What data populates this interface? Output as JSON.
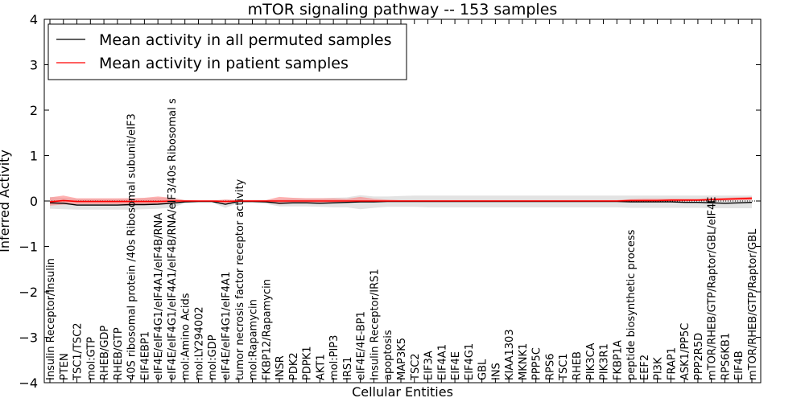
{
  "chart_data": {
    "type": "line",
    "title": "mTOR signaling pathway -- 153 samples",
    "xlabel": "Cellular Entities",
    "ylabel": "Inferred Activity",
    "ylim": [
      -4,
      4
    ],
    "yticks": [
      -4,
      -3,
      -2,
      -1,
      0,
      1,
      2,
      3,
      4
    ],
    "ytick_labels": [
      "−4",
      "−3",
      "−2",
      "−1",
      "0",
      "1",
      "2",
      "3",
      "4"
    ],
    "grid": false,
    "legend_position": "top-left",
    "categories": [
      "Insulin Receptor/Insulin",
      "PTEN",
      "TSC1/TSC2",
      "mol:GTP",
      "RHEB/GDP",
      "RHEB/GTP",
      "40S ribosomal protein /40s Ribosomal subunit/eIF3",
      "EIF4EBP1",
      "eIF4E/eIF4G1/eIF4A1/eIF4B/RNA",
      "eIF4E/eIF4G1/eIF4A1/eIF4B/RNA/eIF3/40s Ribosomal s",
      "mol:Amino Acids",
      "mol:LY294002",
      "mol:GDP",
      "eIF4E/eIF4G1/eIF4A1",
      "tumor necrosis factor receptor activity",
      "mol:Rapamycin",
      "FKBP12/Rapamycin",
      "INSR",
      "PDK2",
      "PDPK1",
      "AKT1",
      "mol:PIP3",
      "IRS1",
      "eIF4E/4E-BP1",
      "Insulin Receptor/IRS1",
      "apoptosis",
      "MAP3K5",
      "TSC2",
      "EIF3A",
      "EIF4A1",
      "EIF4E",
      "EIF4G1",
      "GBL",
      "INS",
      "KIAA1303",
      "MKNK1",
      "PPP5C",
      "RPS6",
      "TSC1",
      "RHEB",
      "PIK3CA",
      "PIK3R1",
      "FKBP1A",
      "peptide biosynthetic process",
      "EEF2",
      "PI3K",
      "FRAP1",
      "ASK1/PP5C",
      "PPP2R5D",
      "mTOR/RHEB/GTP/Raptor/GBL/eIF4E",
      "RPS6KB1",
      "EIF4B",
      "mTOR/RHEB/GTP/Raptor/GBL"
    ],
    "series": [
      {
        "name": "Mean activity in all permuted samples",
        "color": "#000000",
        "band_color": "#cccccc",
        "values": [
          -0.04,
          -0.05,
          -0.09,
          -0.09,
          -0.09,
          -0.09,
          -0.08,
          -0.08,
          -0.07,
          -0.05,
          -0.02,
          -0.01,
          -0.01,
          -0.07,
          -0.01,
          -0.01,
          -0.02,
          -0.05,
          -0.04,
          -0.04,
          -0.05,
          -0.04,
          -0.03,
          -0.02,
          -0.02,
          -0.01,
          -0.01,
          -0.01,
          -0.01,
          -0.01,
          -0.01,
          -0.01,
          -0.01,
          -0.01,
          -0.01,
          -0.01,
          -0.01,
          -0.01,
          -0.01,
          -0.01,
          -0.01,
          -0.01,
          -0.01,
          -0.02,
          -0.02,
          -0.02,
          -0.02,
          -0.03,
          -0.03,
          -0.04,
          -0.05,
          -0.04,
          -0.03
        ],
        "lower": [
          -0.17,
          -0.18,
          -0.19,
          -0.19,
          -0.19,
          -0.19,
          -0.19,
          -0.18,
          -0.17,
          -0.15,
          -0.05,
          -0.03,
          -0.03,
          -0.15,
          -0.04,
          -0.04,
          -0.06,
          -0.12,
          -0.12,
          -0.12,
          -0.13,
          -0.14,
          -0.14,
          -0.18,
          -0.15,
          -0.13,
          -0.13,
          -0.13,
          -0.14,
          -0.14,
          -0.14,
          -0.14,
          -0.14,
          -0.14,
          -0.14,
          -0.14,
          -0.14,
          -0.14,
          -0.14,
          -0.14,
          -0.14,
          -0.14,
          -0.14,
          -0.15,
          -0.15,
          -0.15,
          -0.15,
          -0.15,
          -0.15,
          -0.16,
          -0.16,
          -0.16,
          -0.16
        ],
        "upper": [
          0.09,
          0.07,
          0.05,
          0.05,
          0.05,
          0.05,
          0.06,
          0.06,
          0.07,
          0.07,
          0.02,
          0.01,
          0.01,
          0.03,
          0.02,
          0.02,
          0.02,
          0.04,
          0.06,
          0.06,
          0.06,
          0.07,
          0.08,
          0.13,
          0.1,
          0.1,
          0.11,
          0.12,
          0.12,
          0.12,
          0.12,
          0.12,
          0.12,
          0.12,
          0.12,
          0.12,
          0.12,
          0.12,
          0.12,
          0.12,
          0.12,
          0.12,
          0.12,
          0.12,
          0.12,
          0.12,
          0.12,
          0.12,
          0.12,
          0.12,
          0.12,
          0.12,
          0.12
        ]
      },
      {
        "name": "Mean activity in patient samples",
        "color": "#ff0000",
        "band_color": "#ff7f7f",
        "values": [
          -0.02,
          0.01,
          -0.01,
          -0.01,
          -0.01,
          -0.01,
          -0.01,
          -0.01,
          -0.01,
          0.0,
          0.0,
          0.0,
          0.0,
          -0.01,
          0.0,
          0.0,
          0.0,
          0.0,
          0.0,
          0.0,
          0.0,
          0.0,
          0.0,
          0.0,
          0.0,
          0.0,
          0.0,
          0.0,
          0.0,
          0.0,
          0.0,
          0.0,
          0.0,
          0.0,
          0.0,
          0.0,
          0.0,
          0.0,
          0.0,
          0.0,
          0.0,
          0.0,
          0.0,
          0.01,
          0.01,
          0.01,
          0.02,
          0.02,
          0.02,
          0.03,
          0.04,
          0.05,
          0.06
        ],
        "lower": [
          -0.1,
          -0.08,
          -0.07,
          -0.07,
          -0.07,
          -0.07,
          -0.07,
          -0.07,
          -0.07,
          -0.06,
          -0.02,
          -0.01,
          -0.01,
          -0.05,
          -0.02,
          -0.02,
          -0.03,
          -0.07,
          -0.05,
          -0.05,
          -0.05,
          -0.05,
          -0.04,
          -0.03,
          -0.02,
          -0.01,
          -0.01,
          -0.01,
          -0.01,
          -0.01,
          -0.01,
          -0.01,
          -0.01,
          -0.01,
          -0.01,
          -0.01,
          -0.01,
          -0.01,
          -0.01,
          -0.01,
          -0.01,
          -0.01,
          -0.01,
          -0.02,
          -0.02,
          -0.02,
          -0.01,
          -0.01,
          0.0,
          0.01,
          0.01,
          0.02,
          0.02
        ],
        "upper": [
          0.08,
          0.12,
          0.06,
          0.06,
          0.06,
          0.06,
          0.06,
          0.07,
          0.1,
          0.07,
          0.02,
          0.01,
          0.01,
          0.03,
          0.02,
          0.02,
          0.02,
          0.09,
          0.07,
          0.06,
          0.06,
          0.06,
          0.05,
          0.09,
          0.05,
          0.03,
          0.02,
          0.02,
          0.02,
          0.02,
          0.02,
          0.02,
          0.02,
          0.02,
          0.02,
          0.02,
          0.02,
          0.02,
          0.02,
          0.02,
          0.02,
          0.02,
          0.02,
          0.04,
          0.05,
          0.05,
          0.05,
          0.05,
          0.05,
          0.06,
          0.07,
          0.08,
          0.09
        ]
      }
    ]
  }
}
